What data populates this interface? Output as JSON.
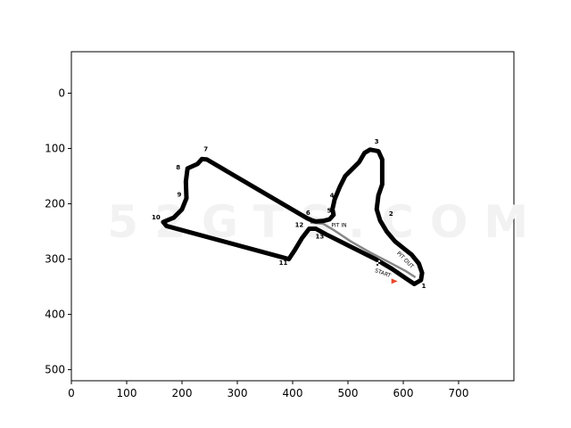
{
  "image": {
    "watermark": "52GTS.COM",
    "pit_in_label": "PIT IN",
    "pit_out_label": "PIT OUT",
    "start_label": "START",
    "corners": [
      {
        "label": "1",
        "x": 637,
        "y": 352
      },
      {
        "label": "2",
        "x": 578,
        "y": 222
      },
      {
        "label": "3",
        "x": 552,
        "y": 91
      },
      {
        "label": "4",
        "x": 471,
        "y": 189
      },
      {
        "label": "5",
        "x": 466,
        "y": 216
      },
      {
        "label": "6",
        "x": 428,
        "y": 220
      },
      {
        "label": "7",
        "x": 243,
        "y": 105
      },
      {
        "label": "8",
        "x": 193,
        "y": 138
      },
      {
        "label": "9",
        "x": 195,
        "y": 187
      },
      {
        "label": "10",
        "x": 153,
        "y": 228
      },
      {
        "label": "11",
        "x": 383,
        "y": 310
      },
      {
        "label": "12",
        "x": 412,
        "y": 242
      },
      {
        "label": "13",
        "x": 449,
        "y": 263
      }
    ],
    "x_axis": {
      "ticks": [
        0,
        100,
        200,
        300,
        400,
        500,
        600,
        700
      ],
      "range": [
        0,
        800
      ]
    },
    "y_axis": {
      "ticks": [
        0,
        100,
        200,
        300,
        400,
        500
      ],
      "range": [
        520,
        -75
      ],
      "inverted": true
    },
    "colors": {
      "track": "#000000",
      "pitlane": "#888888",
      "start_arrow": "#e8472a",
      "watermark": "#f2f2f2"
    }
  }
}
